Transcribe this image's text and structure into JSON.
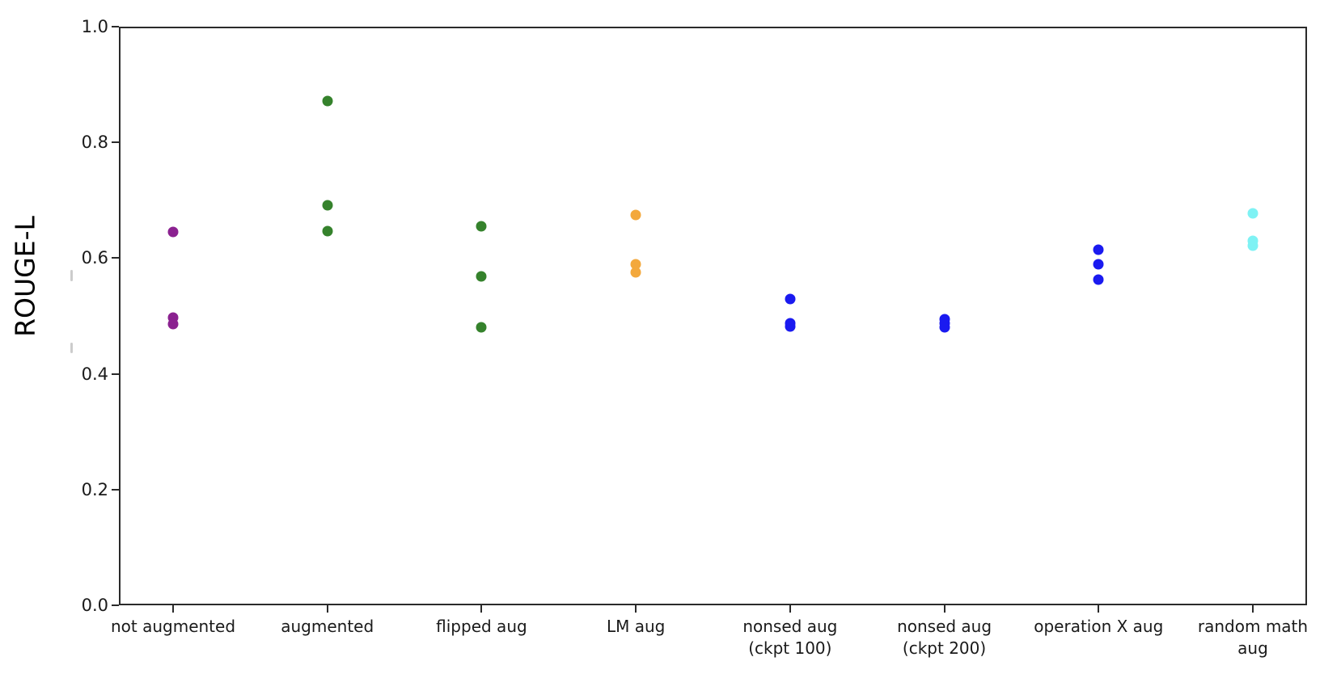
{
  "chart_data": {
    "type": "scatter",
    "title": "",
    "xlabel": "",
    "ylabel": "ROUGE-L",
    "ylim": [
      0.0,
      1.0
    ],
    "yticks": [
      0.0,
      0.2,
      0.4,
      0.6,
      0.8,
      1.0
    ],
    "ytick_labels": [
      "0.0",
      "0.2",
      "0.4",
      "0.6",
      "0.8",
      "1.0"
    ],
    "grid": false,
    "legend_position": "none",
    "marker": "circle",
    "background": "#ffffff",
    "axis_color": "#2a2a2a",
    "text_color": "#1a1a1a",
    "categories": [
      "not augmented",
      "augmented",
      "flipped aug",
      "LM aug",
      "nonsed aug (ckpt 100)",
      "nonsed aug (ckpt 200)",
      "operation X aug",
      "random math aug"
    ],
    "series": [
      {
        "name": "not augmented",
        "label_lines": [
          "not augmented"
        ],
        "color": "#8b2190",
        "values": [
          0.645,
          0.497,
          0.486
        ]
      },
      {
        "name": "augmented",
        "label_lines": [
          "augmented"
        ],
        "color": "#35822c",
        "values": [
          0.872,
          0.691,
          0.646
        ]
      },
      {
        "name": "flipped aug",
        "label_lines": [
          "flipped aug"
        ],
        "color": "#35822c",
        "values": [
          0.655,
          0.568,
          0.48
        ]
      },
      {
        "name": "LM aug",
        "label_lines": [
          "LM aug"
        ],
        "color": "#f3a83c",
        "values": [
          0.674,
          0.589,
          0.575
        ]
      },
      {
        "name": "nonsed aug (ckpt 100)",
        "label_lines": [
          "nonsed aug",
          "(ckpt 100)"
        ],
        "color": "#1a1af0",
        "values": [
          0.53,
          0.488,
          0.482
        ]
      },
      {
        "name": "nonsed aug (ckpt 200)",
        "label_lines": [
          "nonsed aug",
          "(ckpt 200)"
        ],
        "color": "#1a1af0",
        "values": [
          0.494,
          0.487,
          0.481
        ]
      },
      {
        "name": "operation X aug",
        "label_lines": [
          "operation X aug"
        ],
        "color": "#1a1af0",
        "values": [
          0.614,
          0.589,
          0.563
        ]
      },
      {
        "name": "random math aug",
        "label_lines": [
          "random math",
          "aug"
        ],
        "color": "#7ef2f4",
        "values": [
          0.678,
          0.63,
          0.621
        ]
      }
    ]
  }
}
